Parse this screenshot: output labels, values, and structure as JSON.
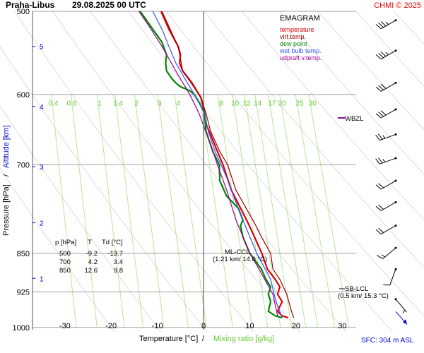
{
  "header": {
    "station": "Praha-Libus",
    "datetime": "29.08.2025 00 UTC",
    "copyright": "CHMI © 2025"
  },
  "legend": {
    "title": "EMAGRAM",
    "items": [
      {
        "label": "temperature",
        "color": "#e00000"
      },
      {
        "label": "virt.temp.",
        "color": "#990000"
      },
      {
        "label": "dew point",
        "color": "#008800"
      },
      {
        "label": "wet bulb temp.",
        "color": "#3355ff"
      },
      {
        "label": "udpraft v.temp.",
        "color": "#990099"
      }
    ]
  },
  "table": {
    "headers": [
      "p [hPa]",
      "T",
      "Td [°C]"
    ],
    "rows": [
      [
        "500",
        "-9.2",
        "-13.7"
      ],
      [
        "700",
        "4.2",
        "3.4"
      ],
      [
        "850",
        "12.6",
        "9.8"
      ]
    ]
  },
  "annotations": {
    "wbzl": "WBZL",
    "ml_ccl_1": "ML-CCL",
    "ml_ccl_2": "(1.21 km/ 14.0 °C)",
    "sb_lcl_1": "SB-LCL",
    "sb_lcl_2": "(0.5 km/ 15.3 °C)",
    "sfc": "SFC: 304 m ASL"
  },
  "chart_data": {
    "type": "line",
    "title": "Praha-Libus 29.08.2025 00 UTC",
    "xlabel_temperature": "Temperature [°C]",
    "xlabel_separator": "/",
    "xlabel_mixing": "Mixing ratio [g/kg]",
    "ylabel_pressure": "Pressure [hPa]",
    "ylabel_separator": "/",
    "ylabel_altitude": "Altitude [km]",
    "xlim": [
      -37,
      33
    ],
    "ylim": [
      1005,
      500
    ],
    "y_scale": "log",
    "temperature_ticks": [
      -30,
      -20,
      -10,
      0,
      10,
      20,
      30
    ],
    "pressure_ticks": [
      500,
      600,
      700,
      850,
      925,
      1000
    ],
    "altitude_ticks": [
      {
        "label": "5",
        "p": 540
      },
      {
        "label": "4",
        "p": 616
      },
      {
        "label": "3",
        "p": 703
      },
      {
        "label": "2",
        "p": 795
      },
      {
        "label": "1",
        "p": 898
      }
    ],
    "mixing_ratio_labels": [
      "0.4",
      "0.6",
      "1",
      "1.4",
      "2",
      "3",
      "4",
      "8",
      "10",
      "12",
      "14",
      "17",
      "20",
      "25",
      "30"
    ],
    "mixing_ratio_label_temps": [
      -32.5,
      -28.5,
      -22.5,
      -18.5,
      -14.5,
      -9.5,
      -5.5,
      3.8,
      6.8,
      9.3,
      11.7,
      14.8,
      17.0,
      20.8,
      23.6
    ],
    "wbzl_pressure": 640,
    "series": [
      {
        "name": "temperature",
        "color": "#e00000",
        "points": [
          [
            18.3,
            979
          ],
          [
            17,
            975
          ],
          [
            16,
            965
          ],
          [
            17,
            945
          ],
          [
            16,
            930
          ],
          [
            16.5,
            915
          ],
          [
            15.5,
            900
          ],
          [
            13.8,
            880
          ],
          [
            12.6,
            850
          ],
          [
            11,
            820
          ],
          [
            9.6,
            795
          ],
          [
            8,
            770
          ],
          [
            6,
            740
          ],
          [
            4.2,
            700
          ],
          [
            3,
            680
          ],
          [
            1.5,
            655
          ],
          [
            0.5,
            640
          ],
          [
            0.2,
            625
          ],
          [
            -0.5,
            605
          ],
          [
            -2.5,
            585
          ],
          [
            -4.5,
            570
          ],
          [
            -5.2,
            560
          ],
          [
            -5,
            550
          ],
          [
            -5.5,
            540
          ],
          [
            -6.5,
            530
          ],
          [
            -7.5,
            520
          ],
          [
            -9.2,
            500
          ]
        ]
      },
      {
        "name": "virt.temp.",
        "color": "#990000",
        "points": [
          [
            19.5,
            979
          ],
          [
            19,
            965
          ],
          [
            18,
            930
          ],
          [
            16.5,
            900
          ],
          [
            15,
            880
          ],
          [
            14.5,
            850
          ],
          [
            12.5,
            820
          ],
          [
            11,
            795
          ],
          [
            9.2,
            770
          ],
          [
            7,
            740
          ],
          [
            5.2,
            700
          ],
          [
            3.5,
            680
          ],
          [
            1.5,
            650
          ],
          [
            0.5,
            625
          ],
          [
            -0.5,
            605
          ],
          [
            -2.7,
            585
          ],
          [
            -4.5,
            570
          ],
          [
            -5,
            555
          ],
          [
            -5.5,
            540
          ],
          [
            -6.8,
            525
          ],
          [
            -9,
            500
          ]
        ]
      },
      {
        "name": "dew point",
        "color": "#008800",
        "points": [
          [
            17,
            979
          ],
          [
            15.5,
            975
          ],
          [
            14,
            965
          ],
          [
            14.5,
            945
          ],
          [
            14,
            930
          ],
          [
            14.5,
            915
          ],
          [
            13.5,
            900
          ],
          [
            12.5,
            880
          ],
          [
            10,
            850
          ],
          [
            8.5,
            820
          ],
          [
            8,
            800
          ],
          [
            8.5,
            790
          ],
          [
            7.5,
            770
          ],
          [
            5,
            750
          ],
          [
            3.5,
            725
          ],
          [
            3.4,
            700
          ],
          [
            2,
            680
          ],
          [
            0.5,
            650
          ],
          [
            0.2,
            625
          ],
          [
            -1,
            610
          ],
          [
            -2,
            600
          ],
          [
            -3,
            595
          ],
          [
            -5,
            590
          ],
          [
            -6,
            585
          ],
          [
            -6.8,
            580
          ],
          [
            -8,
            570
          ],
          [
            -8.2,
            560
          ],
          [
            -8,
            550
          ],
          [
            -9,
            535
          ],
          [
            -11,
            520
          ],
          [
            -13.7,
            500
          ]
        ]
      },
      {
        "name": "wet bulb temp.",
        "color": "#3355ff",
        "points": [
          [
            17,
            979
          ],
          [
            15.5,
            940
          ],
          [
            14.5,
            900
          ],
          [
            11.5,
            850
          ],
          [
            9,
            800
          ],
          [
            7,
            760
          ],
          [
            5,
            720
          ],
          [
            3.8,
            700
          ],
          [
            2.5,
            680
          ],
          [
            1,
            650
          ],
          [
            0.2,
            625
          ],
          [
            -1.5,
            605
          ],
          [
            -4,
            580
          ],
          [
            -6,
            560
          ],
          [
            -7.5,
            540
          ],
          [
            -9,
            520
          ],
          [
            -11,
            500
          ]
        ]
      },
      {
        "name": "udpraft v.temp.",
        "color": "#990099",
        "points": [
          [
            16,
            975
          ],
          [
            15,
            930
          ],
          [
            12,
            880
          ],
          [
            10,
            850
          ],
          [
            7,
            790
          ],
          [
            5,
            740
          ],
          [
            3,
            700
          ],
          [
            1,
            660
          ],
          [
            -1,
            625
          ],
          [
            -3,
            600
          ],
          [
            -6,
            570
          ],
          [
            -9,
            540
          ],
          [
            -12,
            515
          ],
          [
            -14,
            500
          ]
        ]
      }
    ],
    "wind_barbs": [
      {
        "p": 510,
        "speed_kt": 35,
        "from_deg": 240
      },
      {
        "p": 545,
        "speed_kt": 35,
        "from_deg": 240
      },
      {
        "p": 585,
        "speed_kt": 30,
        "from_deg": 240
      },
      {
        "p": 620,
        "speed_kt": 30,
        "from_deg": 240
      },
      {
        "p": 655,
        "speed_kt": 25,
        "from_deg": 250
      },
      {
        "p": 690,
        "speed_kt": 25,
        "from_deg": 250
      },
      {
        "p": 725,
        "speed_kt": 20,
        "from_deg": 240
      },
      {
        "p": 760,
        "speed_kt": 20,
        "from_deg": 240
      },
      {
        "p": 800,
        "speed_kt": 20,
        "from_deg": 240
      },
      {
        "p": 840,
        "speed_kt": 15,
        "from_deg": 230
      },
      {
        "p": 880,
        "speed_kt": 10,
        "from_deg": 200
      },
      {
        "p": 940,
        "speed_kt": 5,
        "from_deg": 140
      }
    ],
    "surface_wind_color": "#0000cc"
  }
}
